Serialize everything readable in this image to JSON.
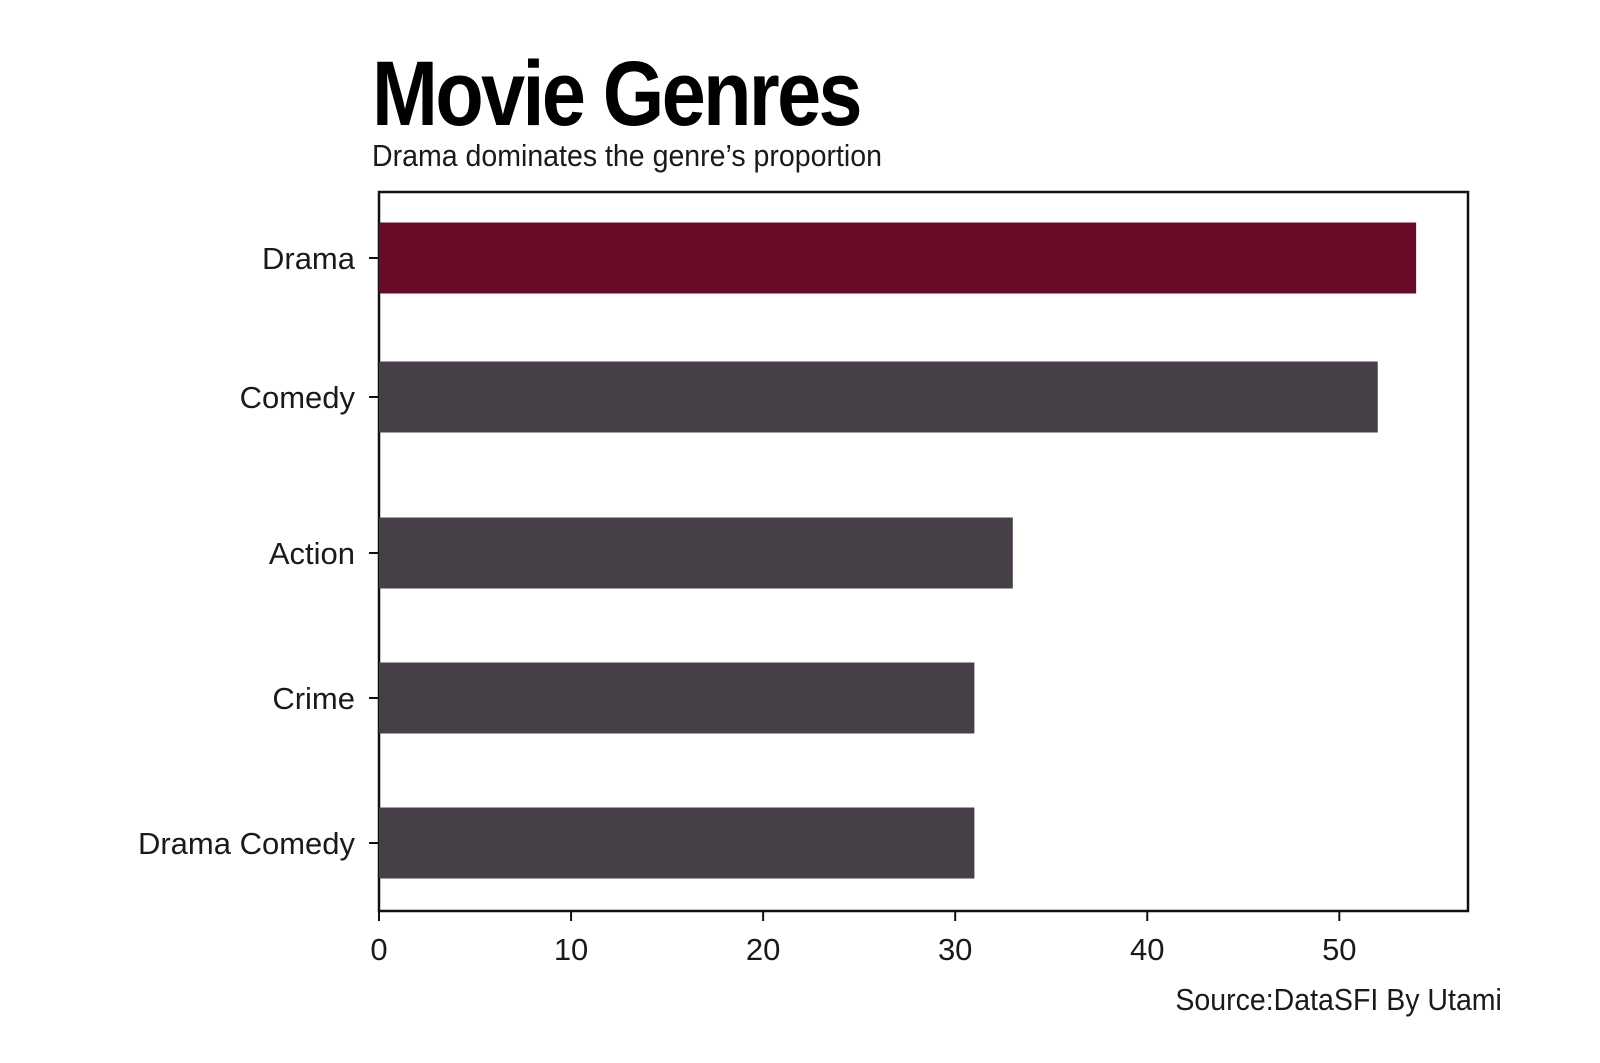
{
  "chart_data": {
    "type": "bar",
    "orientation": "horizontal",
    "title": "Movie Genres",
    "subtitle": "Drama dominates the genre’s proportion",
    "source": "Source:DataSFI By Utami",
    "categories": [
      "Drama",
      "Comedy",
      "Action",
      "Crime",
      "Drama Comedy"
    ],
    "values": [
      54,
      52,
      33,
      31,
      31
    ],
    "xlim": [
      0,
      56.7
    ],
    "xticks": [
      0,
      10,
      20,
      30,
      40,
      50
    ],
    "xlabel": "",
    "ylabel": "",
    "grid": false,
    "colors": {
      "highlight": "#670b27",
      "default": "#473f47"
    },
    "highlight_category": "Drama"
  }
}
